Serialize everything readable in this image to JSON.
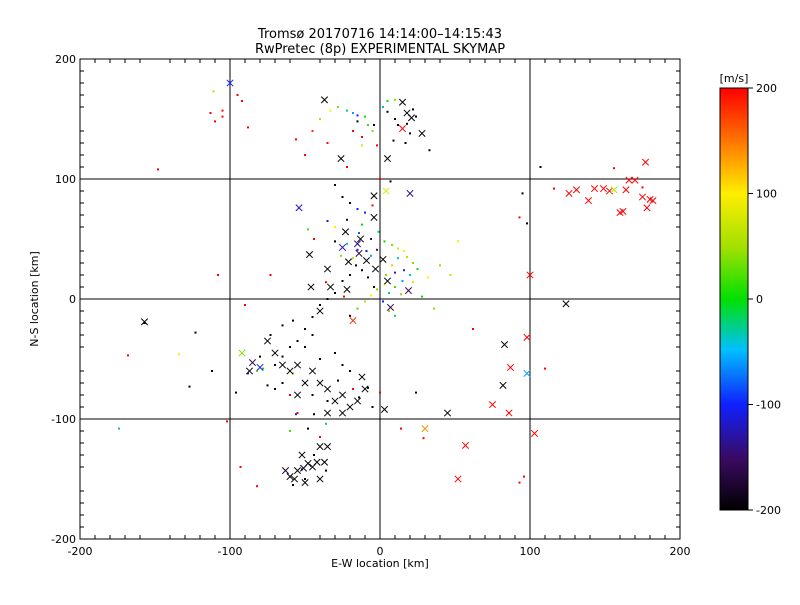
{
  "chart_data": {
    "type": "scatter",
    "title": "Tromsø 20170716 14:14:00–14:15:43",
    "subtitle": "RwPretec (8p) EXPERIMENTAL SKYMAP",
    "xlabel": "E-W location [km]",
    "ylabel": "N-S location [km]",
    "xlim": [
      -200,
      200
    ],
    "ylim": [
      -200,
      200
    ],
    "xticks": [
      -200,
      -100,
      0,
      100,
      200
    ],
    "yticks": [
      -200,
      -100,
      0,
      100,
      200
    ],
    "xtick_labels": [
      "-200",
      "-100",
      "0",
      "100",
      "200"
    ],
    "ytick_labels": [
      "-200",
      "-100",
      "0",
      "100",
      "200"
    ],
    "grid": true,
    "grid_lines": [
      -100,
      0,
      100
    ],
    "colorbar": {
      "label": "[m/s]",
      "range": [
        -200,
        200
      ],
      "ticks": [
        200,
        100,
        0,
        -100,
        -200
      ],
      "tick_labels": [
        "200",
        "100",
        "0",
        "-100",
        "-200"
      ]
    },
    "crosses": [
      [
        -100,
        180,
        -100
      ],
      [
        -37,
        166,
        -200
      ],
      [
        15,
        164,
        -200
      ],
      [
        18,
        155,
        -200
      ],
      [
        21,
        151,
        -200
      ],
      [
        15,
        142,
        200
      ],
      [
        28,
        138,
        -200
      ],
      [
        -26,
        117,
        -200
      ],
      [
        5,
        117,
        -200
      ],
      [
        20,
        88,
        -140
      ],
      [
        -54,
        76,
        -120
      ],
      [
        4,
        90,
        80
      ],
      [
        -4,
        86,
        -200
      ],
      [
        -4,
        68,
        -200
      ],
      [
        -23,
        56,
        -200
      ],
      [
        -13,
        50,
        -200
      ],
      [
        -14,
        38,
        -160
      ],
      [
        -9,
        32,
        -200
      ],
      [
        -21,
        31,
        -200
      ],
      [
        2,
        33,
        -200
      ],
      [
        -3,
        25,
        -200
      ],
      [
        -47,
        37,
        -200
      ],
      [
        -46,
        10,
        -200
      ],
      [
        -33,
        10,
        -200
      ],
      [
        -22,
        8,
        -200
      ],
      [
        -40,
        -10,
        -200
      ],
      [
        -18,
        -18,
        180
      ],
      [
        7,
        -7,
        -160
      ],
      [
        19,
        7,
        -160
      ],
      [
        -157,
        -19,
        -200
      ],
      [
        -25,
        43,
        -120
      ],
      [
        -15,
        46,
        -140
      ],
      [
        -35,
        25,
        -200
      ],
      [
        5,
        15,
        -200
      ],
      [
        -92,
        -45,
        40
      ],
      [
        -85,
        -53,
        -160
      ],
      [
        -87,
        -60,
        -200
      ],
      [
        -75,
        -35,
        -200
      ],
      [
        -70,
        -45,
        -200
      ],
      [
        -65,
        -55,
        -200
      ],
      [
        -60,
        -60,
        -200
      ],
      [
        -55,
        -55,
        -200
      ],
      [
        -50,
        -70,
        -200
      ],
      [
        -45,
        -60,
        -200
      ],
      [
        -40,
        -70,
        -200
      ],
      [
        -35,
        -75,
        -200
      ],
      [
        -30,
        -85,
        -200
      ],
      [
        -25,
        -80,
        -200
      ],
      [
        -20,
        -90,
        -200
      ],
      [
        -15,
        -85,
        -200
      ],
      [
        -10,
        -75,
        -200
      ],
      [
        -55,
        -80,
        -200
      ],
      [
        -35,
        -95,
        -200
      ],
      [
        -12,
        -65,
        -200
      ],
      [
        -25,
        -95,
        -200
      ],
      [
        -80,
        -57,
        -100
      ],
      [
        -52,
        -130,
        -200
      ],
      [
        -40,
        -123,
        -200
      ],
      [
        -35,
        -123,
        -200
      ],
      [
        -48,
        -137,
        -200
      ],
      [
        -42,
        -136,
        -200
      ],
      [
        -37,
        -136,
        -200
      ],
      [
        -55,
        -143,
        -200
      ],
      [
        -60,
        -148,
        -200
      ],
      [
        -57,
        -150,
        -200
      ],
      [
        -50,
        -153,
        -200
      ],
      [
        -40,
        -150,
        -200
      ],
      [
        -63,
        -143,
        -180
      ],
      [
        -45,
        -140,
        -200
      ],
      [
        -51,
        -141,
        -180
      ],
      [
        3,
        -92,
        -200
      ],
      [
        45,
        -95,
        -200
      ],
      [
        30,
        -108,
        140
      ],
      [
        57,
        -122,
        200
      ],
      [
        52,
        -150,
        200
      ],
      [
        75,
        -88,
        200
      ],
      [
        82,
        -72,
        -200
      ],
      [
        86,
        -95,
        200
      ],
      [
        87,
        -57,
        200
      ],
      [
        98,
        -62,
        -60
      ],
      [
        98,
        -32,
        200
      ],
      [
        83,
        -38,
        -200
      ],
      [
        103,
        -112,
        200
      ],
      [
        100,
        20,
        200
      ],
      [
        124,
        -4,
        -200
      ],
      [
        126,
        88,
        200
      ],
      [
        131,
        91,
        200
      ],
      [
        139,
        82,
        200
      ],
      [
        143,
        92,
        200
      ],
      [
        149,
        92,
        200
      ],
      [
        153,
        90,
        200
      ],
      [
        156,
        91,
        60
      ],
      [
        160,
        72,
        200
      ],
      [
        162,
        73,
        200
      ],
      [
        164,
        91,
        200
      ],
      [
        166,
        99,
        200
      ],
      [
        170,
        99,
        200
      ],
      [
        175,
        85,
        200
      ],
      [
        177,
        114,
        200
      ],
      [
        178,
        76,
        200
      ],
      [
        180,
        83,
        200
      ],
      [
        182,
        82,
        200
      ]
    ],
    "points": [
      [
        -95,
        170,
        200
      ],
      [
        -92,
        165,
        200
      ],
      [
        -105,
        157,
        200
      ],
      [
        -105,
        152,
        200
      ],
      [
        -113,
        155,
        200
      ],
      [
        -110,
        148,
        200
      ],
      [
        -88,
        143,
        200
      ],
      [
        -56,
        133,
        200
      ],
      [
        -148,
        108,
        200
      ],
      [
        -111,
        173,
        60
      ],
      [
        -22,
        110,
        200
      ],
      [
        -35,
        130,
        200
      ],
      [
        -50,
        120,
        200
      ],
      [
        -45,
        140,
        180
      ],
      [
        -40,
        150,
        120
      ],
      [
        -33,
        157,
        100
      ],
      [
        -28,
        160,
        40
      ],
      [
        -22,
        157,
        -20
      ],
      [
        -18,
        155,
        -60
      ],
      [
        -15,
        153,
        -100
      ],
      [
        -10,
        152,
        0
      ],
      [
        -8,
        145,
        20
      ],
      [
        -5,
        140,
        40
      ],
      [
        -12,
        135,
        200
      ],
      [
        2,
        160,
        -40
      ],
      [
        5,
        165,
        0
      ],
      [
        10,
        166,
        40
      ],
      [
        5,
        156,
        -200
      ],
      [
        10,
        150,
        -200
      ],
      [
        12,
        145,
        -200
      ],
      [
        18,
        146,
        -200
      ],
      [
        22,
        158,
        -200
      ],
      [
        24,
        152,
        -200
      ],
      [
        20,
        138,
        -200
      ],
      [
        17,
        130,
        -200
      ],
      [
        9,
        132,
        -200
      ],
      [
        33,
        124,
        -200
      ],
      [
        -4,
        145,
        -200
      ],
      [
        -15,
        148,
        -200
      ],
      [
        -18,
        140,
        200
      ],
      [
        -12,
        128,
        80
      ],
      [
        -2,
        128,
        200
      ],
      [
        -30,
        95,
        -200
      ],
      [
        -25,
        85,
        -200
      ],
      [
        -20,
        80,
        -200
      ],
      [
        -15,
        75,
        -100
      ],
      [
        -10,
        72,
        -100
      ],
      [
        -12,
        62,
        0
      ],
      [
        -5,
        78,
        200
      ],
      [
        0,
        100,
        200
      ],
      [
        7,
        98,
        -200
      ],
      [
        -35,
        65,
        -120
      ],
      [
        -30,
        60,
        100
      ],
      [
        -22,
        66,
        -180
      ],
      [
        -14,
        55,
        -80
      ],
      [
        -6,
        50,
        -140
      ],
      [
        -1,
        56,
        -20
      ],
      [
        3,
        48,
        0
      ],
      [
        8,
        45,
        40
      ],
      [
        12,
        42,
        80
      ],
      [
        16,
        40,
        100
      ],
      [
        18,
        35,
        60
      ],
      [
        22,
        30,
        40
      ],
      [
        25,
        25,
        0
      ],
      [
        20,
        20,
        -40
      ],
      [
        15,
        15,
        -60
      ],
      [
        10,
        10,
        20
      ],
      [
        6,
        5,
        -20
      ],
      [
        3,
        12,
        100
      ],
      [
        8,
        28,
        120
      ],
      [
        12,
        34,
        -40
      ],
      [
        16,
        24,
        -100
      ],
      [
        4,
        20,
        40
      ],
      [
        10,
        22,
        -120
      ],
      [
        22,
        14,
        80
      ],
      [
        14,
        4,
        40
      ],
      [
        -4,
        10,
        -200
      ],
      [
        -8,
        18,
        -200
      ],
      [
        -12,
        24,
        -200
      ],
      [
        -16,
        28,
        -200
      ],
      [
        -20,
        20,
        -200
      ],
      [
        -25,
        15,
        -200
      ],
      [
        -30,
        5,
        -200
      ],
      [
        -35,
        0,
        -200
      ],
      [
        -40,
        -5,
        -200
      ],
      [
        -45,
        -15,
        -200
      ],
      [
        -50,
        -25,
        -200
      ],
      [
        -55,
        -35,
        -200
      ],
      [
        -60,
        -40,
        -200
      ],
      [
        -65,
        -48,
        -200
      ],
      [
        -70,
        -55,
        -200
      ],
      [
        -36,
        14,
        200
      ],
      [
        -24,
        2,
        200
      ],
      [
        -20,
        -14,
        -200
      ],
      [
        -15,
        -8,
        20
      ],
      [
        -10,
        -2,
        60
      ],
      [
        -6,
        3,
        100
      ],
      [
        -2,
        8,
        40
      ],
      [
        2,
        -2,
        -100
      ],
      [
        6,
        -10,
        40
      ],
      [
        10,
        -14,
        -20
      ],
      [
        36,
        -8,
        40
      ],
      [
        28,
        2,
        0
      ],
      [
        32,
        18,
        100
      ],
      [
        40,
        28,
        40
      ],
      [
        47,
        20,
        60
      ],
      [
        52,
        48,
        100
      ],
      [
        62,
        -25,
        200
      ],
      [
        95,
        88,
        -200
      ],
      [
        98,
        63,
        -200
      ],
      [
        93,
        68,
        200
      ],
      [
        107,
        110,
        -200
      ],
      [
        116,
        92,
        200
      ],
      [
        156,
        109,
        200
      ],
      [
        175,
        93,
        200
      ],
      [
        110,
        -58,
        200
      ],
      [
        -123,
        -28,
        -200
      ],
      [
        -127,
        -73,
        -200
      ],
      [
        -134,
        -46,
        100
      ],
      [
        -102,
        -102,
        200
      ],
      [
        -174,
        -108,
        -20
      ],
      [
        -168,
        -47,
        200
      ],
      [
        -157,
        -20,
        -200
      ],
      [
        -112,
        -60,
        -200
      ],
      [
        -96,
        -78,
        -200
      ],
      [
        -80,
        -48,
        -200
      ],
      [
        -73,
        -30,
        -200
      ],
      [
        -65,
        -22,
        -200
      ],
      [
        -58,
        -18,
        -200
      ],
      [
        -50,
        -40,
        -200
      ],
      [
        -45,
        -30,
        -200
      ],
      [
        -40,
        -50,
        -200
      ],
      [
        -30,
        -45,
        -200
      ],
      [
        -25,
        -55,
        -200
      ],
      [
        -20,
        -60,
        -200
      ],
      [
        -28,
        -68,
        -200
      ],
      [
        -18,
        -75,
        200
      ],
      [
        -14,
        -82,
        -200
      ],
      [
        -8,
        -74,
        -200
      ],
      [
        -5,
        -90,
        -200
      ],
      [
        -35,
        -85,
        -200
      ],
      [
        -45,
        -80,
        -200
      ],
      [
        -55,
        -95,
        200
      ],
      [
        -60,
        -80,
        200
      ],
      [
        -65,
        -70,
        -200
      ],
      [
        -70,
        -75,
        -200
      ],
      [
        -75,
        -72,
        -200
      ],
      [
        -78,
        -58,
        0
      ],
      [
        -82,
        -60,
        40
      ],
      [
        -88,
        -62,
        -100
      ],
      [
        -58,
        -62,
        40
      ],
      [
        -60,
        -110,
        20
      ],
      [
        -56,
        -96,
        -100
      ],
      [
        -48,
        -108,
        -200
      ],
      [
        -44,
        -96,
        -200
      ],
      [
        -40,
        -115,
        200
      ],
      [
        -36,
        -104,
        -20
      ],
      [
        -58,
        -155,
        -200
      ],
      [
        -44,
        -130,
        -200
      ],
      [
        -36,
        -143,
        -200
      ],
      [
        -50,
        -150,
        -200
      ],
      [
        -52,
        -142,
        -200
      ],
      [
        -82,
        -156,
        200
      ],
      [
        -93,
        -140,
        200
      ],
      [
        -90,
        -5,
        200
      ],
      [
        -108,
        20,
        200
      ],
      [
        -73,
        20,
        200
      ],
      [
        14,
        -108,
        200
      ],
      [
        24,
        -78,
        -200
      ],
      [
        0,
        -78,
        200
      ],
      [
        29,
        -116,
        200
      ],
      [
        93,
        -153,
        200
      ],
      [
        96,
        -148,
        200
      ],
      [
        -48,
        58,
        20
      ],
      [
        -44,
        50,
        200
      ],
      [
        -30,
        48,
        -200
      ],
      [
        -26,
        36,
        40
      ],
      [
        -18,
        34,
        60
      ],
      [
        -6,
        36,
        -60
      ],
      [
        -2,
        41,
        -140
      ],
      [
        -9,
        40,
        -120
      ],
      [
        -15,
        41,
        -100
      ],
      [
        -22,
        46,
        -40
      ]
    ]
  }
}
